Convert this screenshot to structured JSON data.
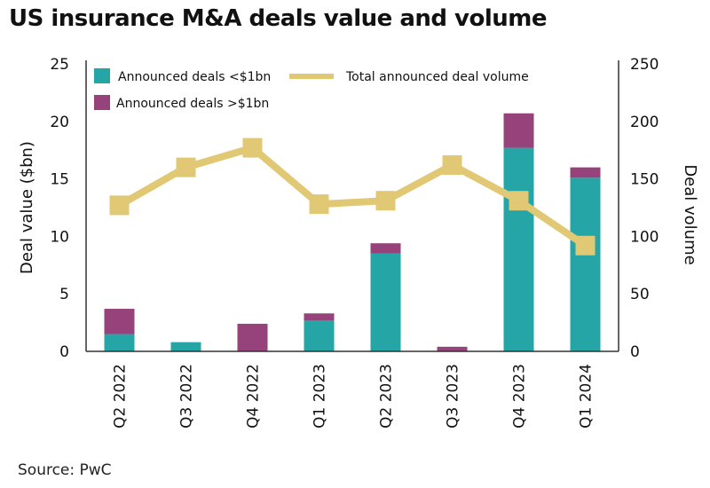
{
  "title": "US insurance M&A deals value and volume",
  "source": "Source: PwC",
  "colors": {
    "small_deals": "#26a5a6",
    "large_deals": "#95437a",
    "volume_line": "#e0c874",
    "axis": "#333333"
  },
  "chart_data": {
    "type": "bar",
    "stacked": true,
    "title": "US insurance M&A deals value and volume",
    "categories": [
      "Q2 2022",
      "Q3 2022",
      "Q4 2022",
      "Q1 2023",
      "Q2 2023",
      "Q3 2023",
      "Q4 2023",
      "Q1 2024"
    ],
    "series": [
      {
        "name": "Announced deals <$1bn",
        "type": "bar",
        "axis": "left",
        "values": [
          1.5,
          0.8,
          0.0,
          2.7,
          8.5,
          0.0,
          17.7,
          15.1
        ]
      },
      {
        "name": "Announced deals >$1bn",
        "type": "bar",
        "axis": "left",
        "values": [
          2.2,
          0.0,
          2.4,
          0.6,
          0.9,
          0.4,
          3.0,
          0.9
        ]
      },
      {
        "name": "Total announced deal volume",
        "type": "line",
        "axis": "right",
        "values": [
          127,
          160,
          177,
          128,
          131,
          162,
          131,
          92
        ]
      }
    ],
    "ylabel": "Deal value ($bn)",
    "ylim": [
      0,
      25
    ],
    "yticks": [
      0,
      5,
      10,
      15,
      20,
      25
    ],
    "y2label": "Deal volume",
    "y2lim": [
      0,
      250
    ],
    "y2ticks": [
      0,
      50,
      100,
      150,
      200,
      250
    ],
    "xlabel": "",
    "grid": false,
    "legend": "top-left, inside plot"
  }
}
